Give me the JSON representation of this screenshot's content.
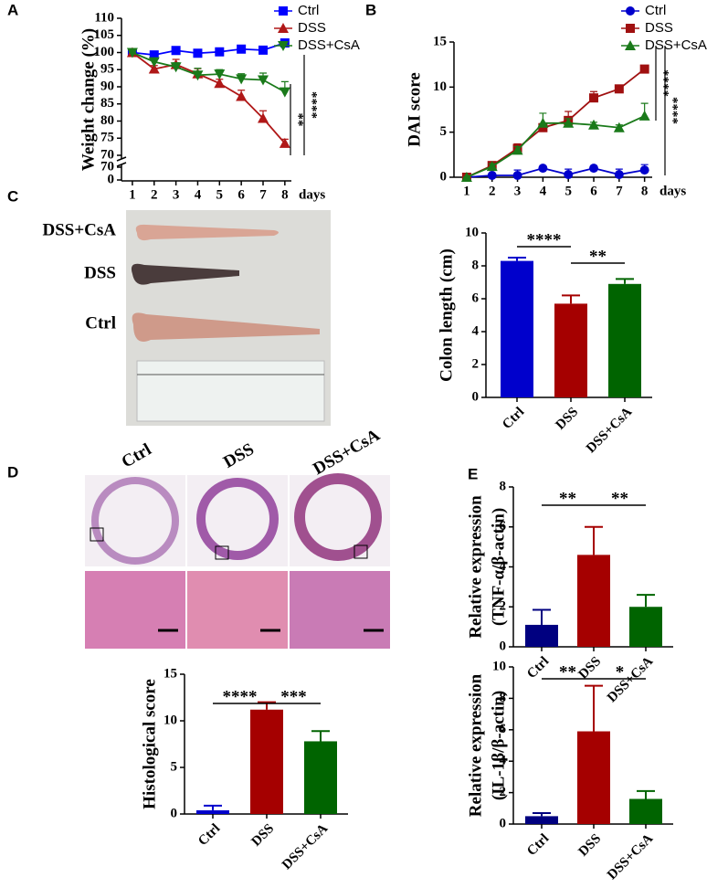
{
  "panel_labels": [
    "A",
    "B",
    "C",
    "D",
    "E"
  ],
  "photo_c": {
    "labels": [
      "DSS+CsA",
      "DSS",
      "Ctrl"
    ]
  },
  "photo_d": {
    "labels": [
      "Ctrl",
      "DSS",
      "DSS+CsA"
    ]
  },
  "chart_data": [
    {
      "type": "line",
      "ylabel": "Weight change (%)",
      "xlabel": "days",
      "x": [
        1,
        2,
        3,
        4,
        5,
        6,
        7,
        8
      ],
      "xlim": [
        0.5,
        8.3
      ],
      "ylim": [
        70,
        110
      ],
      "yticks": [
        70,
        75,
        80,
        85,
        90,
        95,
        100,
        105,
        110
      ],
      "lower_ylim": [
        0,
        70
      ],
      "lower_yticks": [
        0,
        70
      ],
      "legend": "upper right",
      "annotations": [
        "**",
        "****"
      ],
      "series": [
        {
          "name": "Ctrl",
          "color": "#0000ff",
          "marker": "square",
          "values": [
            100,
            99.3,
            100.6,
            99.8,
            100.2,
            101,
            100.7,
            102.8
          ],
          "errors": [
            0.3,
            0.3,
            0.4,
            0.3,
            0.3,
            0.3,
            0.3,
            0.4
          ]
        },
        {
          "name": "DSS",
          "color": "#b01818",
          "marker": "triangle",
          "values": [
            100,
            95.2,
            96.5,
            93.8,
            91,
            87.2,
            80.8,
            73.5
          ],
          "errors": [
            0,
            1,
            1.5,
            1.5,
            1.2,
            1.8,
            2.2,
            1.2
          ]
        },
        {
          "name": "DSS+CsA",
          "color": "#1a7a1a",
          "marker": "triangle-down",
          "values": [
            100,
            97.3,
            95.8,
            93.4,
            93.7,
            92.3,
            92,
            88.5
          ],
          "errors": [
            0,
            1,
            1.2,
            2,
            1.3,
            1.5,
            2,
            3
          ]
        }
      ]
    },
    {
      "type": "line",
      "ylabel": "DAI score",
      "xlabel": "days",
      "x": [
        1,
        2,
        3,
        4,
        5,
        6,
        7,
        8
      ],
      "xlim": [
        0.5,
        8.3
      ],
      "ylim": [
        0,
        15
      ],
      "yticks": [
        0,
        5,
        10,
        15
      ],
      "legend": "upper right",
      "annotations": [
        "****",
        "****"
      ],
      "series": [
        {
          "name": "Ctrl",
          "color": "#0000cc",
          "marker": "circle",
          "values": [
            0,
            0.2,
            0.2,
            1,
            0.3,
            1,
            0.3,
            0.8
          ],
          "errors": [
            0,
            0.2,
            0.6,
            0.1,
            0.6,
            0.1,
            0.6,
            0.6
          ]
        },
        {
          "name": "DSS",
          "color": "#a01010",
          "marker": "square",
          "values": [
            0,
            1.3,
            3.2,
            5.5,
            6.3,
            8.8,
            9.8,
            12
          ],
          "errors": [
            0,
            0.3,
            0.5,
            0.3,
            1,
            0.7,
            0.3,
            0.2
          ]
        },
        {
          "name": "DSS+CsA",
          "color": "#1a7a1a",
          "marker": "triangle",
          "values": [
            0,
            1.2,
            3,
            6,
            6,
            5.8,
            5.5,
            6.8
          ],
          "errors": [
            0,
            0.3,
            0.4,
            1.1,
            0.5,
            0.3,
            0.3,
            1.4
          ]
        }
      ]
    },
    {
      "type": "bar",
      "ylabel": [
        "Colon length (cm)"
      ],
      "categories": [
        "Ctrl",
        "DSS",
        "DSS+CsA"
      ],
      "values": [
        8.3,
        5.7,
        6.9
      ],
      "errors": [
        0.2,
        0.5,
        0.3
      ],
      "colors": [
        "#0000cc",
        "#a50000",
        "#006400"
      ],
      "ylim": [
        0,
        10
      ],
      "yticks": [
        0,
        2,
        4,
        6,
        8,
        10
      ],
      "annotations": [
        "****",
        "**"
      ]
    },
    {
      "type": "bar",
      "ylabel": [
        "Histological score"
      ],
      "categories": [
        "Ctrl",
        "DSS",
        "DSS+CsA"
      ],
      "values": [
        0.4,
        11.2,
        7.8
      ],
      "errors": [
        0.5,
        0.8,
        1.1
      ],
      "colors": [
        "#0000cc",
        "#a50000",
        "#006400"
      ],
      "ylim": [
        0,
        15
      ],
      "yticks": [
        0,
        5,
        10,
        15
      ],
      "annotations": [
        "****",
        "***"
      ]
    },
    {
      "type": "bar",
      "ylabel": [
        "Relative expression",
        "(TNF-α/β-actin)"
      ],
      "categories": [
        "Ctrl",
        "DSS",
        "DSS+CsA"
      ],
      "values": [
        1.1,
        4.6,
        2.0
      ],
      "errors": [
        0.75,
        1.4,
        0.6
      ],
      "colors": [
        "#000080",
        "#a50000",
        "#006400"
      ],
      "ylim": [
        0,
        8
      ],
      "yticks": [
        0,
        2,
        4,
        6,
        8
      ],
      "annotations": [
        "**",
        "**"
      ]
    },
    {
      "type": "bar",
      "ylabel": [
        "Relative expression",
        "(IL-1β/β-actin)"
      ],
      "categories": [
        "Ctrl",
        "DSS",
        "DSS+CsA"
      ],
      "values": [
        0.5,
        5.9,
        1.6
      ],
      "errors": [
        0.2,
        2.9,
        0.5
      ],
      "colors": [
        "#000080",
        "#a50000",
        "#006400"
      ],
      "ylim": [
        0,
        10
      ],
      "yticks": [
        0,
        2,
        4,
        6,
        8,
        10
      ],
      "annotations": [
        "**",
        "*"
      ]
    }
  ]
}
